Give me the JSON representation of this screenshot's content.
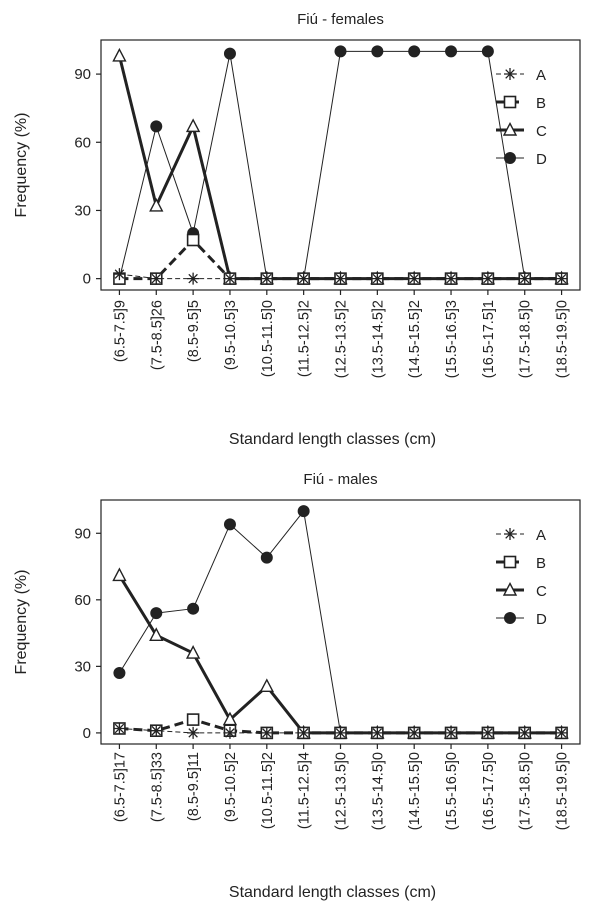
{
  "chart_data": [
    {
      "type": "line",
      "title": "Fiú - females",
      "xlabel": "Standard length classes (cm)",
      "ylabel": "Frequency (%)",
      "ylim": [
        -5,
        105
      ],
      "yticks": [
        0,
        30,
        60,
        90
      ],
      "legend_position": "top-right",
      "categories": [
        "(6.5-7.5]9",
        "(7.5-8.5]26",
        "(8.5-9.5]5",
        "(9.5-10.5]3",
        "(10.5-11.5]0",
        "(11.5-12.5]2",
        "(12.5-13.5]2",
        "(13.5-14.5]2",
        "(14.5-15.5]2",
        "(15.5-16.5]3",
        "(16.5-17.5]1",
        "(17.5-18.5]0",
        "(18.5-19.5]0"
      ],
      "series": [
        {
          "name": "A",
          "marker": "asterisk",
          "line": "dashed-thin",
          "values": [
            2,
            0,
            0,
            0,
            0,
            0,
            0,
            0,
            0,
            0,
            0,
            0,
            0
          ]
        },
        {
          "name": "B",
          "marker": "open-square",
          "line": "dashed-thick",
          "values": [
            0,
            0,
            17,
            0,
            0,
            0,
            0,
            0,
            0,
            0,
            0,
            0,
            0
          ]
        },
        {
          "name": "C",
          "marker": "open-triangle",
          "line": "solid-thick",
          "values": [
            98,
            32,
            67,
            0,
            0,
            0,
            0,
            0,
            0,
            0,
            0,
            0,
            0
          ]
        },
        {
          "name": "D",
          "marker": "filled-circle",
          "line": "solid-thin",
          "values": [
            0,
            67,
            20,
            99,
            0,
            0,
            100,
            100,
            100,
            100,
            100,
            0,
            0
          ]
        }
      ]
    },
    {
      "type": "line",
      "title": "Fiú - males",
      "xlabel": "Standard length classes (cm)",
      "ylabel": "Frequency (%)",
      "ylim": [
        -5,
        105
      ],
      "yticks": [
        0,
        30,
        60,
        90
      ],
      "legend_position": "top-right",
      "categories": [
        "(6.5-7.5]17",
        "(7.5-8.5]33",
        "(8.5-9.5]11",
        "(9.5-10.5]2",
        "(10.5-11.5]2",
        "(11.5-12.5]4",
        "(12.5-13.5]0",
        "(13.5-14.5]0",
        "(14.5-15.5]0",
        "(15.5-16.5]0",
        "(16.5-17.5]0",
        "(17.5-18.5]0",
        "(18.5-19.5]0"
      ],
      "series": [
        {
          "name": "A",
          "marker": "asterisk",
          "line": "dashed-thin",
          "values": [
            2,
            1,
            0,
            0,
            0,
            0,
            0,
            0,
            0,
            0,
            0,
            0,
            0
          ]
        },
        {
          "name": "B",
          "marker": "open-square",
          "line": "dashed-thick",
          "values": [
            2,
            1,
            6,
            1,
            0,
            0,
            0,
            0,
            0,
            0,
            0,
            0,
            0
          ]
        },
        {
          "name": "C",
          "marker": "open-triangle",
          "line": "solid-thick",
          "values": [
            71,
            44,
            36,
            6,
            21,
            0,
            0,
            0,
            0,
            0,
            0,
            0,
            0
          ]
        },
        {
          "name": "D",
          "marker": "filled-circle",
          "line": "solid-thin",
          "values": [
            27,
            54,
            56,
            94,
            79,
            100,
            0,
            0,
            0,
            0,
            0,
            0,
            0
          ]
        }
      ]
    }
  ]
}
